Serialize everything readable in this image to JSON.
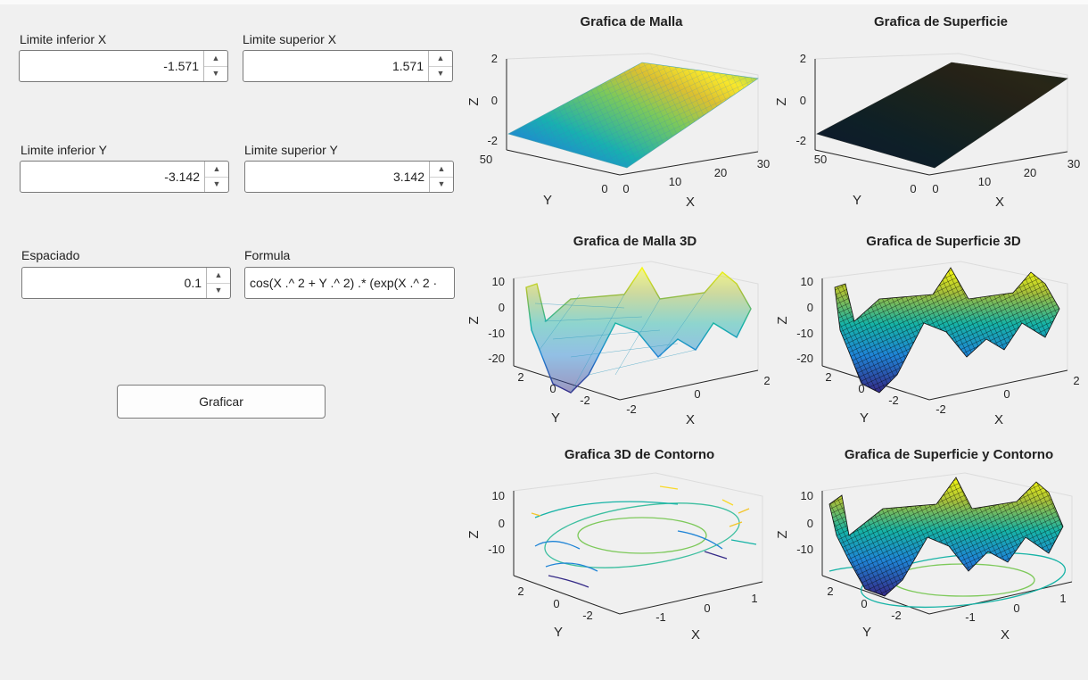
{
  "controls": {
    "x_lower": {
      "label": "Limite inferior X",
      "value": "-1.571"
    },
    "x_upper": {
      "label": "Limite superior X",
      "value": "1.571"
    },
    "y_lower": {
      "label": "Limite inferior Y",
      "value": "-3.142"
    },
    "y_upper": {
      "label": "Limite superior Y",
      "value": "3.142"
    },
    "spacing": {
      "label": "Espaciado",
      "value": "0.1"
    },
    "formula": {
      "label": "Formula",
      "value": "cos(X .^ 2 + Y .^ 2) .* (exp(X .^ 2 ·"
    },
    "plot_button": {
      "label": "Graficar"
    }
  },
  "colors": {
    "background": "#f0f0f0",
    "parula_dark": "#352a87",
    "parula_blue": "#1f84d6",
    "parula_teal": "#16b3a6",
    "parula_yellow": "#f9fb0e"
  },
  "plots": [
    {
      "title": "Grafica de Malla",
      "kind": "mesh-flat",
      "z_ticks": [
        "2",
        "0",
        "-2"
      ],
      "x_ticks": [
        "0",
        "10",
        "20",
        "30"
      ],
      "y_ticks": [
        "50",
        "0"
      ],
      "x_label": "X",
      "y_label": "Y",
      "z_label": "Z"
    },
    {
      "title": "Grafica de Superficie",
      "kind": "surf-flat",
      "z_ticks": [
        "2",
        "0",
        "-2"
      ],
      "x_ticks": [
        "0",
        "10",
        "20",
        "30"
      ],
      "y_ticks": [
        "50",
        "0"
      ],
      "x_label": "X",
      "y_label": "Y",
      "z_label": "Z"
    },
    {
      "title": "Grafica de Malla 3D",
      "kind": "mesh-3d",
      "z_ticks": [
        "10",
        "0",
        "-10",
        "-20"
      ],
      "x_ticks": [
        "-2",
        "0",
        "2"
      ],
      "y_ticks": [
        "2",
        "0",
        "-2"
      ],
      "x_label": "X",
      "y_label": "Y",
      "z_label": "Z"
    },
    {
      "title": "Grafica de Superficie 3D",
      "kind": "surf-3d",
      "z_ticks": [
        "10",
        "0",
        "-10",
        "-20"
      ],
      "x_ticks": [
        "-2",
        "0",
        "2"
      ],
      "y_ticks": [
        "2",
        "0",
        "-2"
      ],
      "x_label": "X",
      "y_label": "Y",
      "z_label": "Z"
    },
    {
      "title": "Grafica 3D de Contorno",
      "kind": "contour-3d",
      "z_ticks": [
        "10",
        "0",
        "-10"
      ],
      "x_ticks": [
        "-1",
        "0",
        "1"
      ],
      "y_ticks": [
        "2",
        "0",
        "-2"
      ],
      "x_label": "X",
      "y_label": "Y",
      "z_label": "Z"
    },
    {
      "title": "Grafica de Superficie y Contorno",
      "kind": "surfc",
      "z_ticks": [
        "10",
        "0",
        "-10"
      ],
      "x_ticks": [
        "-1",
        "0",
        "1"
      ],
      "y_ticks": [
        "2",
        "0",
        "-2"
      ],
      "x_label": "X",
      "y_label": "Y",
      "z_label": "Z"
    }
  ]
}
